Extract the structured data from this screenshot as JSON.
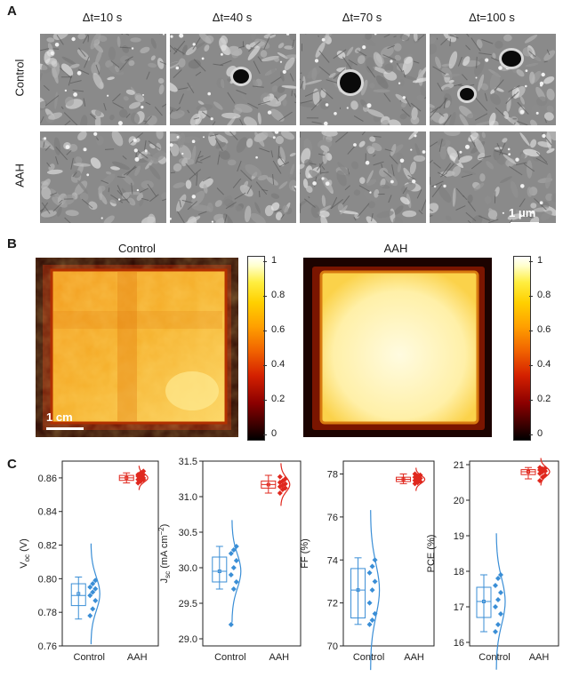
{
  "panel_a": {
    "label": "A",
    "column_titles": [
      "Δt=10 s",
      "Δt=40 s",
      "Δt=70 s",
      "Δt=100 s"
    ],
    "row_labels": [
      "Control",
      "AAH"
    ],
    "scale_bar": "1 μm"
  },
  "panel_b": {
    "label": "B",
    "maps": [
      {
        "title": "Control",
        "scale_bar": "1 cm"
      },
      {
        "title": "AAH"
      }
    ],
    "colorbar_ticks": [
      "1",
      "0.8",
      "0.6",
      "0.4",
      "0.2",
      "0"
    ]
  },
  "panel_c": {
    "label": "C"
  },
  "colors": {
    "control": "#3a8ed6",
    "aah": "#e0281e"
  },
  "chart_data": [
    {
      "type": "box",
      "ylabel": "V_oc (V)",
      "ylim": [
        0.76,
        0.87
      ],
      "yticks": [
        "0.86",
        "0.84",
        "0.82",
        "0.80",
        "0.78",
        "0.76"
      ],
      "categories": [
        "Control",
        "AAH"
      ],
      "control": {
        "q1": 0.784,
        "median": 0.79,
        "mean": 0.791,
        "q3": 0.797,
        "whisker_low": 0.776,
        "whisker_high": 0.801,
        "points": [
          0.778,
          0.782,
          0.787,
          0.79,
          0.792,
          0.794,
          0.795,
          0.797,
          0.799
        ]
      },
      "aah": {
        "q1": 0.8585,
        "median": 0.86,
        "mean": 0.86,
        "q3": 0.8615,
        "whisker_low": 0.857,
        "whisker_high": 0.863,
        "points": [
          0.857,
          0.858,
          0.859,
          0.859,
          0.86,
          0.86,
          0.861,
          0.861,
          0.862,
          0.862,
          0.863,
          0.864
        ]
      }
    },
    {
      "type": "box",
      "ylabel": "J_sc (mA cm^-2)",
      "ylim": [
        28.9,
        31.5
      ],
      "yticks": [
        "31.5",
        "31.0",
        "30.5",
        "30.0",
        "29.5",
        "29.0"
      ],
      "categories": [
        "Control",
        "AAH"
      ],
      "control": {
        "q1": 29.8,
        "median": 29.95,
        "mean": 29.95,
        "q3": 30.15,
        "whisker_low": 29.7,
        "whisker_high": 30.3,
        "points": [
          29.2,
          29.7,
          29.8,
          29.9,
          30.0,
          30.1,
          30.2,
          30.25,
          30.3
        ]
      },
      "aah": {
        "q1": 31.12,
        "median": 31.17,
        "mean": 31.17,
        "q3": 31.22,
        "whisker_low": 31.05,
        "whisker_high": 31.3,
        "points": [
          31.05,
          31.1,
          31.12,
          31.14,
          31.16,
          31.18,
          31.2,
          31.22,
          31.25,
          31.28
        ]
      }
    },
    {
      "type": "box",
      "ylabel": "FF (%)",
      "ylim": [
        70,
        78.6
      ],
      "yticks": [
        "78",
        "76",
        "74",
        "72",
        "70"
      ],
      "categories": [
        "Control",
        "AAH"
      ],
      "control": {
        "q1": 71.3,
        "median": 72.6,
        "mean": 72.6,
        "q3": 73.6,
        "whisker_low": 71.0,
        "whisker_high": 74.1,
        "points": [
          71.0,
          71.2,
          71.5,
          72.0,
          72.6,
          73.0,
          73.4,
          73.7,
          74.0
        ]
      },
      "aah": {
        "q1": 77.65,
        "median": 77.75,
        "mean": 77.75,
        "q3": 77.85,
        "whisker_low": 77.55,
        "whisker_high": 78.0,
        "points": [
          77.55,
          77.6,
          77.65,
          77.7,
          77.75,
          77.8,
          77.85,
          77.9,
          77.95,
          78.0
        ]
      }
    },
    {
      "type": "box",
      "ylabel": "PCE (%)",
      "ylim": [
        15.9,
        21.1
      ],
      "yticks": [
        "21",
        "20",
        "19",
        "18",
        "17",
        "16"
      ],
      "categories": [
        "Control",
        "AAH"
      ],
      "control": {
        "q1": 16.7,
        "median": 17.15,
        "mean": 17.15,
        "q3": 17.55,
        "whisker_low": 16.3,
        "whisker_high": 17.9,
        "points": [
          16.3,
          16.5,
          16.8,
          17.0,
          17.2,
          17.4,
          17.6,
          17.8,
          17.9
        ]
      },
      "aah": {
        "q1": 20.72,
        "median": 20.8,
        "mean": 20.8,
        "q3": 20.86,
        "whisker_low": 20.6,
        "whisker_high": 20.92,
        "points": [
          20.55,
          20.65,
          20.7,
          20.75,
          20.8,
          20.82,
          20.85,
          20.88,
          20.9,
          20.92
        ]
      }
    }
  ]
}
